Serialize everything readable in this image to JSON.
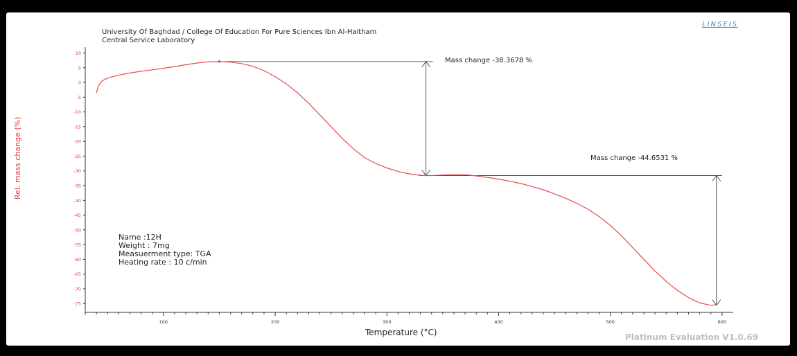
{
  "header": {
    "line1": "University Of Baghdad / College Of Education For Pure Sciences Ibn Al-Haitham",
    "line2": "Central Service Laboratory",
    "logo": "LINSEIS"
  },
  "footer": "Platinum Evaluation V1.0.69",
  "info": {
    "name": "Name :12H",
    "weight": "Weight :  7mg",
    "measurement": "Measuerment type: TGA",
    "heating": "Heating rate : 10 c/min"
  },
  "annotations": [
    {
      "label": "Mass change  -38.3678 %"
    },
    {
      "label": "Mass change  -44.6531 %"
    }
  ],
  "colors": {
    "curve": "#e34a4f",
    "ytitle": "#e0393e",
    "ytick": "#e0393e"
  },
  "chart_data": {
    "type": "line",
    "xlabel": "Temperature (°C)",
    "ylabel": "Rel. mass change (%)",
    "xlim": [
      30,
      610
    ],
    "ylim": [
      -78,
      12
    ],
    "xticks": [
      100,
      200,
      300,
      400,
      500,
      600
    ],
    "yticks": [
      10,
      5,
      0,
      -5,
      -10,
      -15,
      -20,
      -25,
      -30,
      -35,
      -40,
      -45,
      -50,
      -55,
      -60,
      -65,
      -70,
      -75
    ],
    "series": [
      {
        "x": [
          40,
          42,
          45,
          50,
          60,
          70,
          80,
          90,
          100,
          110,
          120,
          130,
          140,
          150,
          160,
          170,
          180,
          190,
          200,
          210,
          220,
          230,
          240,
          250,
          260,
          270,
          280,
          290,
          300,
          310,
          320,
          330,
          335,
          340,
          350,
          360,
          370,
          380,
          390,
          400,
          410,
          420,
          430,
          440,
          450,
          460,
          470,
          480,
          490,
          500,
          510,
          520,
          530,
          540,
          550,
          560,
          570,
          580,
          590,
          595
        ],
        "y": [
          -3.5,
          -1.0,
          0.5,
          1.5,
          2.5,
          3.2,
          3.8,
          4.3,
          4.8,
          5.4,
          6.0,
          6.6,
          7.0,
          7.1,
          6.9,
          6.4,
          5.5,
          4.0,
          2.0,
          -0.5,
          -3.5,
          -7.0,
          -11.0,
          -15.0,
          -19.0,
          -22.5,
          -25.5,
          -27.5,
          -29.0,
          -30.2,
          -31.0,
          -31.5,
          -31.6,
          -31.6,
          -31.4,
          -31.2,
          -31.3,
          -31.7,
          -32.2,
          -32.8,
          -33.5,
          -34.3,
          -35.3,
          -36.4,
          -37.8,
          -39.3,
          -41.0,
          -43.0,
          -45.5,
          -48.5,
          -52.0,
          -56.0,
          -60.0,
          -64.0,
          -67.5,
          -70.5,
          -73.0,
          -74.8,
          -75.6,
          -75.4
        ]
      }
    ]
  }
}
